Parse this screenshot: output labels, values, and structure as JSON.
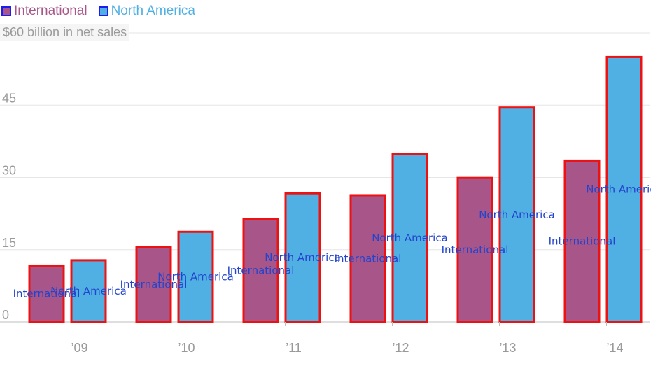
{
  "colors": {
    "international": "#a8568a",
    "north_america": "#50b0e4",
    "bar_outline": "#ee1111",
    "overlay_text": "#2244cc",
    "axis_text": "#9a9a9a",
    "grid": "#e6e6e6"
  },
  "legend": {
    "international": "International",
    "north_america": "North America"
  },
  "unit_label": "$60 billion in net sales",
  "chart_data": {
    "type": "bar",
    "categories": [
      "’09",
      "’10",
      "’11",
      "’12",
      "’13",
      "’14"
    ],
    "series": [
      {
        "name": "International",
        "values": [
          11.7,
          15.5,
          21.4,
          26.3,
          29.9,
          33.5
        ]
      },
      {
        "name": "North America",
        "values": [
          12.8,
          18.7,
          26.7,
          34.8,
          44.5,
          55.0
        ]
      }
    ],
    "ylim": [
      0,
      60
    ],
    "yticks": [
      0,
      15,
      30,
      45
    ],
    "grid": true,
    "legend_position": "top-left",
    "bar_labels": {
      "international": "International",
      "north_america": "North America"
    }
  }
}
